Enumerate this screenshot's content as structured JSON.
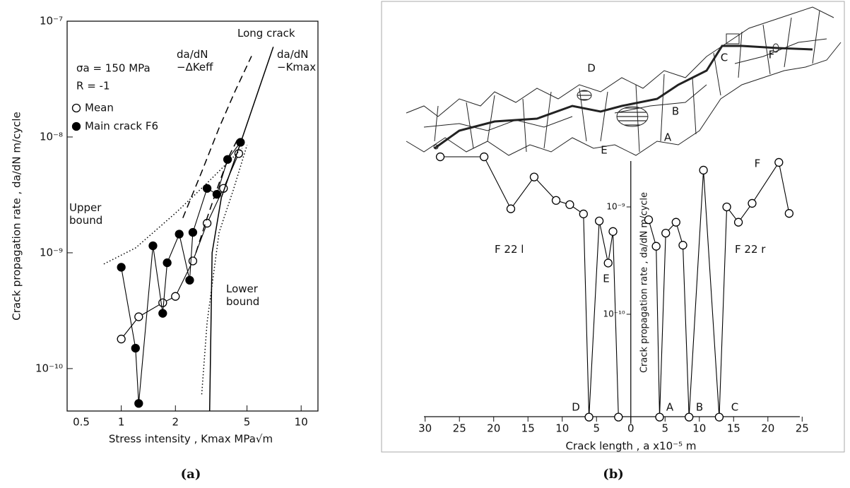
{
  "chart_data": [
    {
      "type": "line",
      "caption": "(a)",
      "xlabel": "Stress intensity , Kmax  MPa√m",
      "ylabel": "Crack propagation rate , da/dN  m/cycle",
      "xscale": "log",
      "yscale": "log",
      "xlim": [
        0.5,
        12.4
      ],
      "ylim": [
        4.3e-11,
        1e-07
      ],
      "xticks": [
        0.5,
        1,
        2,
        5,
        10
      ],
      "yticks": [
        {
          "value": 1e-10,
          "label": "10⁻¹⁰"
        },
        {
          "value": 1e-09,
          "label": "10⁻⁹"
        },
        {
          "value": 1e-08,
          "label": "10⁻⁸"
        },
        {
          "value": 1e-07,
          "label": "10⁻⁷"
        }
      ],
      "annotations": [
        "σa = 150 MPa",
        "R = -1"
      ],
      "series": [
        {
          "name": "Mean",
          "color": "#000000",
          "marker": "open",
          "linestyle": "solid",
          "x": [
            1.0,
            1.25,
            1.7,
            2.0,
            2.5,
            3.0,
            3.7,
            4.5
          ],
          "values": [
            1.8e-10,
            2.8e-10,
            3.7e-10,
            4.2e-10,
            8.5e-10,
            1.8e-09,
            3.6e-09,
            7.2e-09
          ]
        },
        {
          "name": "Main crack F6",
          "color": "#000000",
          "marker": "filled",
          "linestyle": "solid",
          "x": [
            1.0,
            1.2,
            1.25,
            1.5,
            1.7,
            1.8,
            2.1,
            2.4,
            2.5,
            3.0,
            3.4,
            3.9,
            4.6
          ],
          "values": [
            7.5e-10,
            1.5e-10,
            5e-11,
            1.15e-09,
            3e-10,
            8.2e-10,
            1.45e-09,
            5.8e-10,
            1.5e-09,
            3.6e-09,
            3.2e-09,
            6.4e-09,
            9e-09
          ]
        },
        {
          "name": "Long crack",
          "color": "#000000",
          "linestyle": "dashed",
          "x": [
            2.2,
            2.8,
            3.5,
            4.3,
            5.3
          ],
          "values": [
            2e-09,
            5e-09,
            1.2e-08,
            2.5e-08,
            5e-08
          ]
        },
        {
          "name": "da/dN −ΔKeff",
          "color": "#000000",
          "linestyle": "dashed",
          "x": [
            2.6,
            3.0,
            3.5,
            4.0,
            4.5
          ],
          "values": [
            1e-09,
            2e-09,
            4e-09,
            7e-09,
            1e-08
          ]
        },
        {
          "name": "da/dN −Kmax",
          "color": "#000000",
          "linestyle": "solid",
          "x": [
            3.1,
            3.2,
            3.6,
            4.5,
            5.5,
            7.0
          ],
          "values": [
            4.3e-11,
            1e-09,
            3e-09,
            8e-09,
            2e-08,
            6e-08
          ]
        },
        {
          "name": "Upper bound",
          "color": "#000000",
          "linestyle": "dotted",
          "x": [
            0.8,
            1.2,
            2.0,
            3.0,
            4.7
          ],
          "values": [
            8e-10,
            1.1e-09,
            2.2e-09,
            4e-09,
            8e-09
          ]
        },
        {
          "name": "Lower bound",
          "color": "#000000",
          "linestyle": "dotted",
          "x": [
            2.8,
            3.0,
            3.5,
            4.2,
            5.0
          ],
          "values": [
            6e-11,
            2.5e-10,
            1.5e-09,
            3.5e-09,
            8.5e-09
          ]
        }
      ]
    },
    {
      "type": "line",
      "caption": "(b)",
      "xlabel": "Crack length , a    x10⁻⁵ m",
      "ylabel": "Crack propagation rate , da/dN  m/cycle",
      "yscale": "log",
      "xlim": [
        -31,
        26
      ],
      "ylim": [
        1.03e-11,
        3.26e-09
      ],
      "xticks": [
        {
          "value": -30,
          "label": "30"
        },
        {
          "value": -25,
          "label": "25"
        },
        {
          "value": -20,
          "label": "20"
        },
        {
          "value": -15,
          "label": "15"
        },
        {
          "value": -10,
          "label": "10"
        },
        {
          "value": -5,
          "label": "5"
        },
        0,
        5,
        10,
        15,
        20,
        25
      ],
      "yticks": [
        {
          "value": 1e-10,
          "label": "10⁻¹⁰"
        },
        {
          "value": 1e-09,
          "label": "10⁻⁹"
        }
      ],
      "annotations": [
        "D",
        "E",
        "A",
        "B",
        "C",
        "F",
        "D",
        "A",
        "B",
        "C",
        "E",
        "F"
      ],
      "series": [
        {
          "name": "F 22 l",
          "color": "#000000",
          "marker": "open",
          "linestyle": "solid",
          "x": [
            -27.8,
            -21.4,
            -17.5,
            -14.1,
            -10.9,
            -8.9,
            -6.9,
            -6.1,
            -4.6,
            -3.3,
            -2.6,
            -1.8
          ],
          "values": [
            2.93e-09,
            2.93e-09,
            9.6e-10,
            1.9e-09,
            1.15e-09,
            1.05e-09,
            8.6e-10,
            1.1e-11,
            7.4e-10,
            3e-10,
            5.9e-10,
            1.1e-11
          ]
        },
        {
          "name": "F 22 r",
          "color": "#000000",
          "marker": "open",
          "linestyle": "solid",
          "x": [
            2.6,
            3.7,
            4.2,
            5.1,
            6.6,
            7.6,
            8.5,
            10.6,
            12.9,
            14.0,
            15.7,
            17.7,
            21.6,
            23.1
          ],
          "values": [
            7.6e-10,
            4.3e-10,
            1.1e-11,
            5.7e-10,
            7.2e-10,
            4.4e-10,
            1.1e-11,
            2.2e-09,
            1.1e-11,
            1e-09,
            7.2e-10,
            1.08e-09,
            2.6e-09,
            8.7e-10
          ]
        }
      ]
    }
  ]
}
